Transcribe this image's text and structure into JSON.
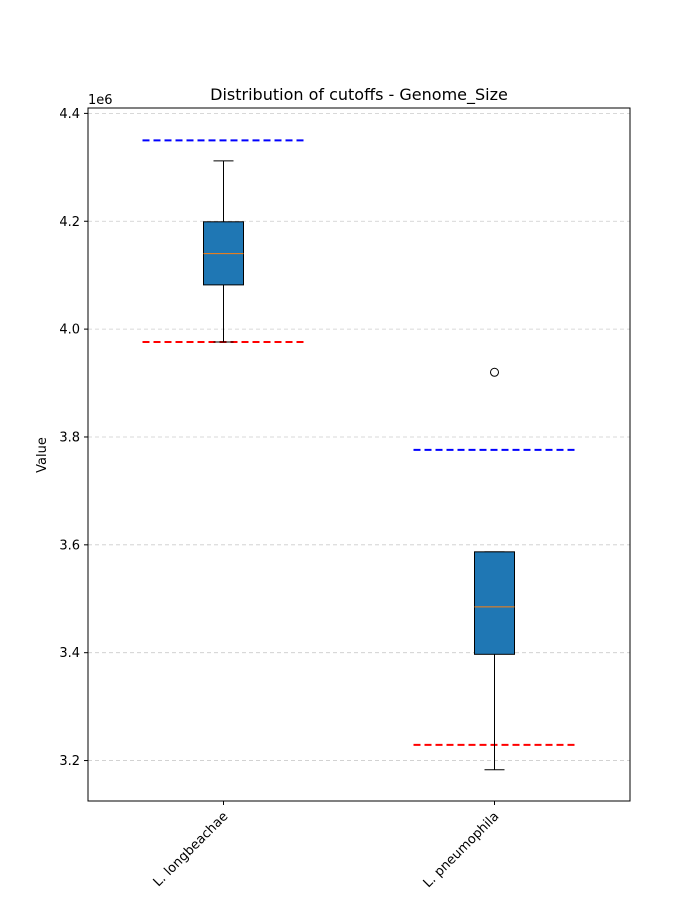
{
  "chart_data": {
    "type": "box",
    "title": "Distribution of cutoffs - Genome_Size",
    "ylabel": "Value",
    "xlabel": "",
    "offset_text": "1e6",
    "y_scale_factor": 1000000,
    "ylim": [
      3.125,
      4.41
    ],
    "yticks": [
      3.2,
      3.4,
      3.6,
      3.8,
      4.0,
      4.2,
      4.4
    ],
    "ytick_labels": [
      "3.2",
      "3.4",
      "3.6",
      "3.8",
      "4.0",
      "4.2",
      "4.4"
    ],
    "grid": "y-dashed",
    "categories": [
      "L. longbeachae",
      "L. pneumophila"
    ],
    "boxes": [
      {
        "name": "L. longbeachae",
        "whisker_low": 3.976,
        "q1": 4.082,
        "median": 4.14,
        "q3": 4.199,
        "whisker_high": 4.312,
        "outliers": [],
        "upper_cutoff": 4.35,
        "lower_cutoff": 3.976
      },
      {
        "name": "L. pneumophila",
        "whisker_low": 3.183,
        "q1": 3.397,
        "median": 3.485,
        "q3": 3.587,
        "whisker_high": 3.587,
        "outliers": [
          3.92
        ],
        "upper_cutoff": 3.776,
        "lower_cutoff": 3.229
      }
    ],
    "colors": {
      "box_fill": "#1f77b4",
      "median": "#ff7f0e",
      "upper_cutoff": "#0000ff",
      "lower_cutoff": "#ff0000",
      "grid": "#cccccc"
    }
  }
}
